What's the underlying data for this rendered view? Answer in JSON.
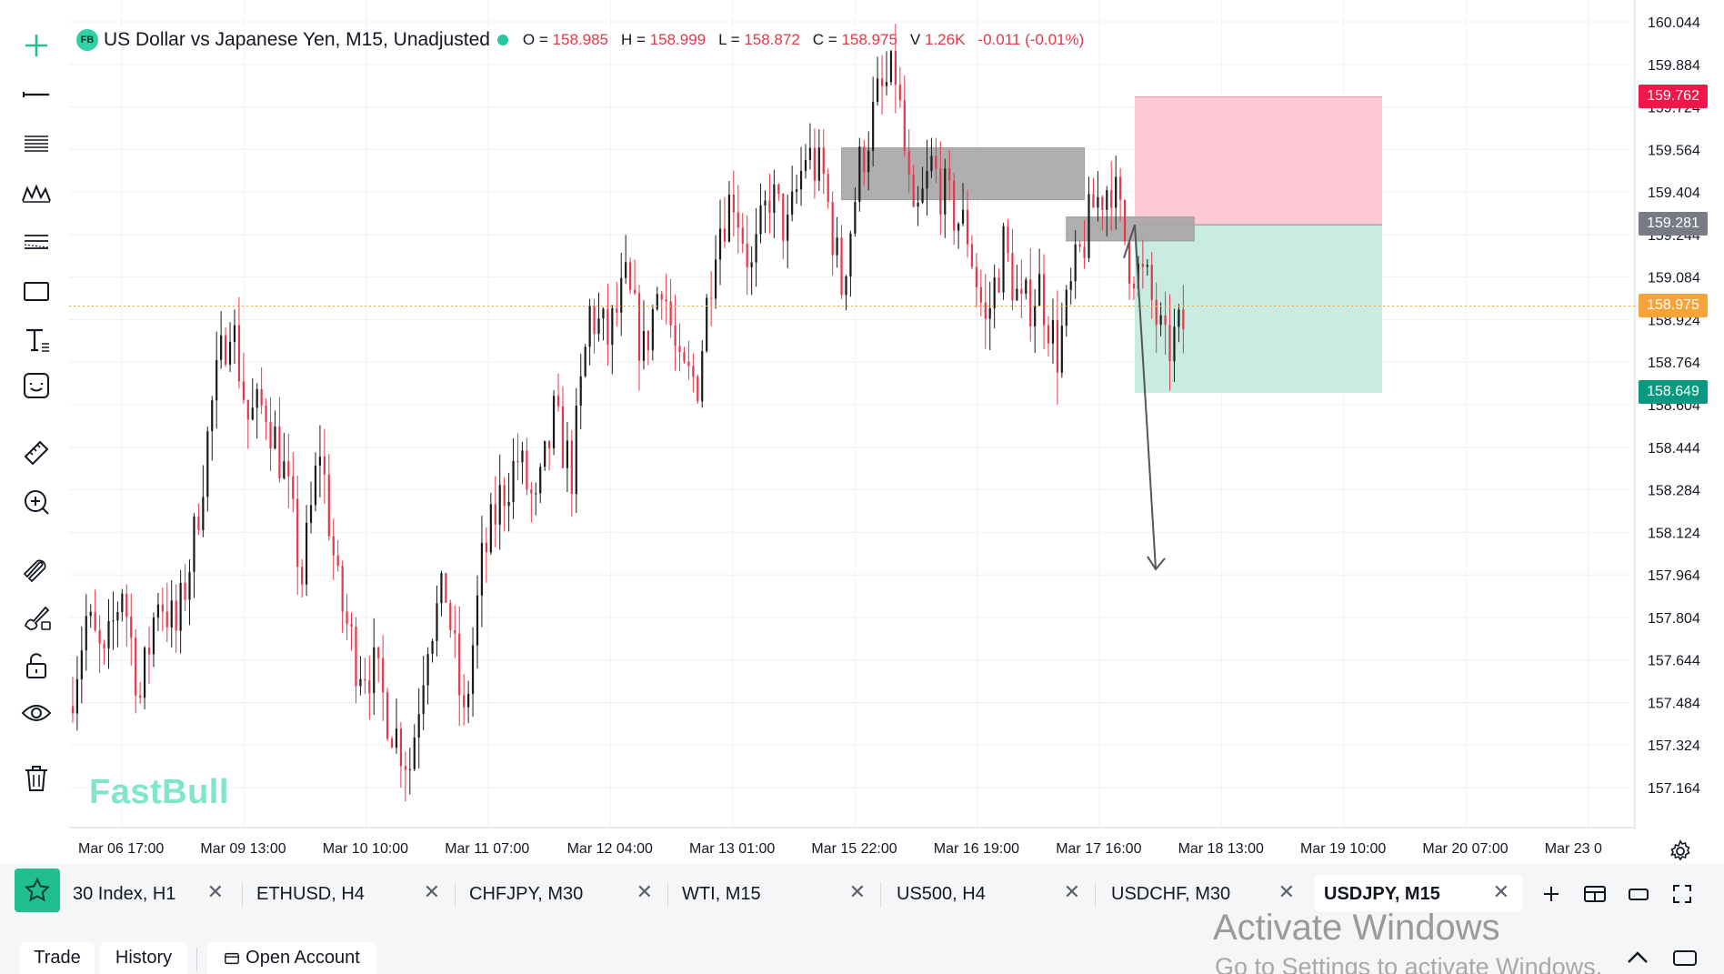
{
  "legend": {
    "logo_text": "FB",
    "symbol": "US Dollar vs Japanese Yen, M15, Unadjusted",
    "open_label": "O =",
    "open": "158.985",
    "high_label": "H =",
    "high": "158.999",
    "low_label": "L =",
    "low": "158.872",
    "close_label": "C =",
    "close": "158.975",
    "volume_label": "V",
    "volume": "1.26K",
    "change": "-0.011 (-0.01%)"
  },
  "watermark": "FastBull",
  "toolbar": {
    "tools": [
      "crosshair-icon",
      "trend-line-icon",
      "fib-icon",
      "pattern-icon",
      "channel-icon",
      "rectangle-icon",
      "text-icon",
      "emoji-icon",
      "ruler-icon",
      "zoom-in-icon",
      "magnet-icon",
      "brush-lock-icon",
      "unlock-icon",
      "eye-icon",
      "trash-icon"
    ]
  },
  "chart_data": {
    "type": "candlestick",
    "symbol": "USDJPY",
    "timeframe": "M15",
    "y_ticks": [
      "160.044",
      "159.884",
      "159.724",
      "159.564",
      "159.404",
      "159.244",
      "159.084",
      "158.924",
      "158.764",
      "158.604",
      "158.444",
      "158.284",
      "158.124",
      "157.964",
      "157.804",
      "157.644",
      "157.484",
      "157.324",
      "157.164"
    ],
    "x_ticks": [
      "Mar 06 17:00",
      "Mar 09 13:00",
      "Mar 10 10:00",
      "Mar 11 07:00",
      "Mar 12 04:00",
      "Mar 13 01:00",
      "Mar 15 22:00",
      "Mar 16 19:00",
      "Mar 17 16:00",
      "Mar 18 13:00",
      "Mar 19 10:00",
      "Mar 20 07:00",
      "Mar 23 0"
    ],
    "ylim": [
      157.05,
      160.06
    ],
    "price_path": [
      [
        0,
        157.47
      ],
      [
        1,
        157.8
      ],
      [
        2,
        157.62
      ],
      [
        3,
        157.93
      ],
      [
        4,
        157.5
      ],
      [
        5,
        157.9
      ],
      [
        6,
        157.75
      ],
      [
        7,
        158.1
      ],
      [
        8,
        158.6
      ],
      [
        9,
        158.95
      ],
      [
        10,
        158.55
      ],
      [
        11,
        158.6
      ],
      [
        12,
        158.35
      ],
      [
        13,
        157.95
      ],
      [
        14,
        158.45
      ],
      [
        15,
        157.9
      ],
      [
        16,
        157.65
      ],
      [
        17,
        157.6
      ],
      [
        18,
        157.4
      ],
      [
        19,
        157.25
      ],
      [
        20,
        157.75
      ],
      [
        21,
        157.9
      ],
      [
        22,
        157.4
      ],
      [
        23,
        158.0
      ],
      [
        24,
        158.25
      ],
      [
        25,
        158.4
      ],
      [
        26,
        158.2
      ],
      [
        27,
        158.55
      ],
      [
        28,
        158.35
      ],
      [
        29,
        158.95
      ],
      [
        30,
        158.85
      ],
      [
        31,
        159.05
      ],
      [
        32,
        158.8
      ],
      [
        33,
        159.1
      ],
      [
        34,
        158.7
      ],
      [
        35,
        158.7
      ],
      [
        36,
        159.25
      ],
      [
        37,
        159.4
      ],
      [
        38,
        159.1
      ],
      [
        39,
        159.4
      ],
      [
        40,
        159.25
      ],
      [
        41,
        159.55
      ],
      [
        42,
        159.45
      ],
      [
        43,
        159.05
      ],
      [
        44,
        159.5
      ],
      [
        45,
        159.75
      ],
      [
        46,
        159.85
      ],
      [
        47,
        159.25
      ],
      [
        48,
        159.5
      ],
      [
        49,
        159.35
      ],
      [
        50,
        159.25
      ],
      [
        51,
        158.9
      ],
      [
        52,
        159.2
      ],
      [
        53,
        158.95
      ],
      [
        54,
        159.05
      ],
      [
        55,
        158.8
      ],
      [
        56,
        159.1
      ],
      [
        57,
        159.35
      ],
      [
        58,
        159.45
      ],
      [
        59,
        159.15
      ],
      [
        60,
        159.05
      ],
      [
        61,
        158.8
      ],
      [
        62,
        158.9
      ]
    ],
    "current_price": "158.975",
    "price_labels": {
      "stop": "159.762",
      "entry": "159.281",
      "current": "158.975",
      "target": "158.649"
    },
    "zones": [
      {
        "name": "resistance-zone",
        "price_top": 159.57,
        "price_bottom": 159.375,
        "time_from": 43.0,
        "time_to": 56.5
      },
      {
        "name": "entry-zone",
        "price_top": 159.31,
        "price_bottom": 159.22,
        "time_from": 55.5,
        "time_to": 62.6
      }
    ],
    "short_position": {
      "entry": 159.281,
      "stop": 159.762,
      "target": 158.649
    },
    "projection_arrow": {
      "to_price": 157.985
    },
    "grid": true
  },
  "tabs": [
    {
      "label": "30 Index, H1"
    },
    {
      "label": "ETHUSD, H4"
    },
    {
      "label": "CHFJPY, M30"
    },
    {
      "label": "WTI, M15"
    },
    {
      "label": "US500, H4"
    },
    {
      "label": "USDCHF, M30"
    },
    {
      "label": "USDJPY, M15"
    }
  ],
  "tab_close": "✕",
  "bottom_tabs": {
    "trade": "Trade",
    "history": "History",
    "open_account": "Open Account"
  },
  "os_overlay": {
    "line1": "Activate Windows",
    "line2": "Go to Settings to activate Windows."
  },
  "colors": {
    "bull": "#1a1a1a",
    "bear": "#e5374a",
    "stop_zone": "#ffc9d5",
    "target_zone": "#c8ece1",
    "resistance_zone": "#a6a6a6",
    "stop_tag": "#f2164a",
    "entry_tag": "#787b86",
    "current_tag": "#f5a43a",
    "target_tag": "#089981",
    "accent": "#1fbf8e"
  }
}
